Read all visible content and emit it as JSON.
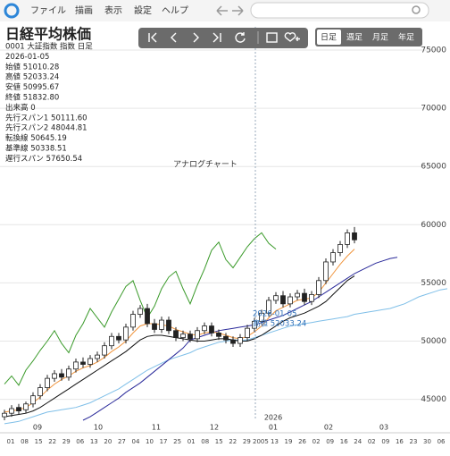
{
  "menu": [
    "ファイル",
    "描画",
    "表示",
    "設定",
    "ヘルプ"
  ],
  "periods": [
    "日足",
    "週足",
    "月足",
    "年足"
  ],
  "info": {
    "title": "日経平均株価",
    "lines": [
      "0001 大証指数 指数 日足",
      "2026-01-05",
      "始値 51010.28",
      "高値 52033.24",
      "安値 50995.67",
      "終値 51832.80",
      "出来高 0",
      "先行スパン1 50111.60",
      "先行スパン2 48044.81",
      "転換線 50645.19",
      "基準線 50338.51",
      "遅行スパン 57650.54"
    ]
  },
  "chart_data": {
    "type": "candlestick",
    "annotation": "アナログチャート",
    "crosshair": {
      "date": "2026-01-05",
      "label": "高値 52033.24"
    },
    "ylim": [
      43200,
      77000
    ],
    "yticks": [
      45000,
      50000,
      55000,
      60000,
      65000,
      70000,
      75000
    ],
    "grid": true,
    "day_labels": [
      "01",
      "08",
      "15",
      "22",
      "29",
      "06",
      "13",
      "20",
      "27",
      "04",
      "10",
      "17",
      "25",
      "01",
      "08",
      "15",
      "22",
      "29",
      "2005",
      "13",
      "19",
      "26",
      "02",
      "09",
      "16",
      "24",
      "02",
      "09",
      "16",
      "23",
      "30",
      "06"
    ],
    "month_labels": [
      "09",
      "10",
      "11",
      "12",
      "01",
      "02",
      "03"
    ],
    "year_label": "2026",
    "up_color": "#ffffff",
    "down_color": "#222222",
    "open": [
      43500,
      43800,
      44300,
      44100,
      44600,
      45300,
      46000,
      46800,
      47200,
      46900,
      47600,
      48200,
      48000,
      48500,
      48800,
      49600,
      50400,
      50100,
      51200,
      52300,
      52800,
      51500,
      51000,
      51800,
      50900,
      50300,
      50600,
      50200,
      50900,
      51300,
      50700,
      50400,
      50100,
      49800,
      50300,
      51100,
      51700,
      52400,
      53500,
      53900,
      53200,
      53800,
      54100,
      53400,
      54000,
      55200,
      56800,
      57600,
      58300,
      59300
    ],
    "high": [
      44100,
      44500,
      44600,
      44800,
      45600,
      46300,
      47100,
      47500,
      47600,
      47900,
      48500,
      48600,
      48800,
      49100,
      49900,
      50700,
      50700,
      51500,
      52600,
      53100,
      53200,
      51900,
      52100,
      52100,
      51200,
      50900,
      50900,
      51200,
      51600,
      51600,
      51000,
      50700,
      50400,
      50600,
      51400,
      52000,
      52700,
      53800,
      54200,
      54300,
      54100,
      54400,
      54500,
      54300,
      55500,
      57100,
      57900,
      58600,
      59600,
      59800
    ],
    "low": [
      43200,
      43500,
      43700,
      43800,
      44300,
      45000,
      45700,
      46500,
      46600,
      46600,
      47300,
      47700,
      47700,
      48200,
      48500,
      49300,
      49800,
      49800,
      50900,
      52000,
      51200,
      50700,
      50700,
      50600,
      50000,
      50000,
      49900,
      49900,
      50600,
      50400,
      50100,
      49800,
      49500,
      49500,
      50000,
      50800,
      51400,
      52100,
      53200,
      52900,
      52900,
      53500,
      53100,
      53100,
      53700,
      54900,
      56500,
      57300,
      58000,
      58400
    ],
    "close": [
      43800,
      44200,
      44000,
      44600,
      45300,
      46000,
      46800,
      47200,
      46900,
      47600,
      48200,
      48000,
      48500,
      48800,
      49600,
      50400,
      50100,
      51200,
      52300,
      52800,
      51500,
      51000,
      51800,
      50900,
      50300,
      50600,
      50200,
      50900,
      51300,
      50700,
      50400,
      50100,
      49800,
      50300,
      51100,
      51700,
      52400,
      53500,
      53900,
      53200,
      53800,
      54100,
      53400,
      54000,
      55200,
      56800,
      57600,
      58300,
      59300,
      58700
    ],
    "series": [
      {
        "name": "先行スパン1",
        "color": "#7fbfe8",
        "values": [
          42900,
          43000,
          43100,
          43300,
          43500,
          43700,
          43900,
          44000,
          44100,
          44200,
          44300,
          44500,
          44700,
          45000,
          45300,
          45600,
          45900,
          46300,
          46700,
          47100,
          47500,
          47800,
          48100,
          48400,
          48600,
          48800,
          49000,
          49300,
          49500,
          49700,
          49900,
          50000,
          50100,
          50100,
          50100,
          50300,
          50500,
          50700,
          50900,
          51100,
          51300,
          51400,
          51500,
          51600,
          51700,
          51800,
          51900,
          52000,
          52100,
          52300,
          52400,
          52500,
          52600,
          52700,
          52800,
          53000,
          53200,
          53500,
          53800,
          54000,
          54200,
          54400,
          54500
        ]
      },
      {
        "name": "先行スパン2",
        "color": "#2a2a9a",
        "values": [
          null,
          null,
          null,
          null,
          null,
          null,
          null,
          null,
          null,
          null,
          null,
          43200,
          43500,
          43900,
          44300,
          44700,
          45100,
          45600,
          46000,
          46400,
          46900,
          47400,
          47900,
          48400,
          48900,
          49400,
          50100,
          50300,
          50500,
          50700,
          50900,
          51000,
          51100,
          51200,
          51300,
          51400,
          51600,
          51800,
          52000,
          52200,
          52500,
          52800,
          53100,
          53400,
          53800,
          54200,
          54600,
          55000,
          55400,
          55800,
          56100,
          56400,
          56700,
          56900,
          57100,
          57200
        ]
      },
      {
        "name": "転換線",
        "color": "#f0943c",
        "values": [
          43900,
          44000,
          44100,
          44300,
          44700,
          45200,
          45800,
          46300,
          46700,
          47000,
          47400,
          47700,
          47900,
          48200,
          48600,
          49100,
          49500,
          50000,
          50700,
          51300,
          51500,
          51500,
          51400,
          51300,
          51000,
          50800,
          50600,
          50500,
          50700,
          50800,
          50700,
          50500,
          50300,
          50200,
          50400,
          50800,
          51300,
          52000,
          52600,
          52900,
          53200,
          53500,
          53600,
          53700,
          54200,
          55000,
          55800,
          56600,
          57300,
          57900
        ]
      },
      {
        "name": "基準線",
        "color": "#111111",
        "values": [
          43500,
          43600,
          43700,
          43800,
          44000,
          44300,
          44700,
          45100,
          45500,
          45900,
          46300,
          46700,
          47100,
          47500,
          47900,
          48300,
          48700,
          49100,
          49600,
          50100,
          50400,
          50500,
          50500,
          50400,
          50300,
          50200,
          50100,
          50000,
          50000,
          50100,
          50200,
          50200,
          50100,
          50000,
          50000,
          50200,
          50500,
          50900,
          51300,
          51700,
          52000,
          52200,
          52400,
          52700,
          53000,
          53400,
          54000,
          54600,
          55200,
          55600
        ]
      },
      {
        "name": "遅行スパン",
        "color": "#3a9a2a",
        "values": [
          46300,
          47000,
          46200,
          47500,
          48300,
          49200,
          50000,
          50900,
          49800,
          49000,
          50500,
          51500,
          52800,
          52000,
          51200,
          52500,
          53600,
          54700,
          55200,
          53500,
          52000,
          53000,
          54500,
          55500,
          56000,
          54500,
          53200,
          54800,
          56200,
          57800,
          58500,
          57000,
          56300,
          57200,
          58100,
          58800,
          59300,
          58400,
          57900
        ]
      }
    ]
  }
}
